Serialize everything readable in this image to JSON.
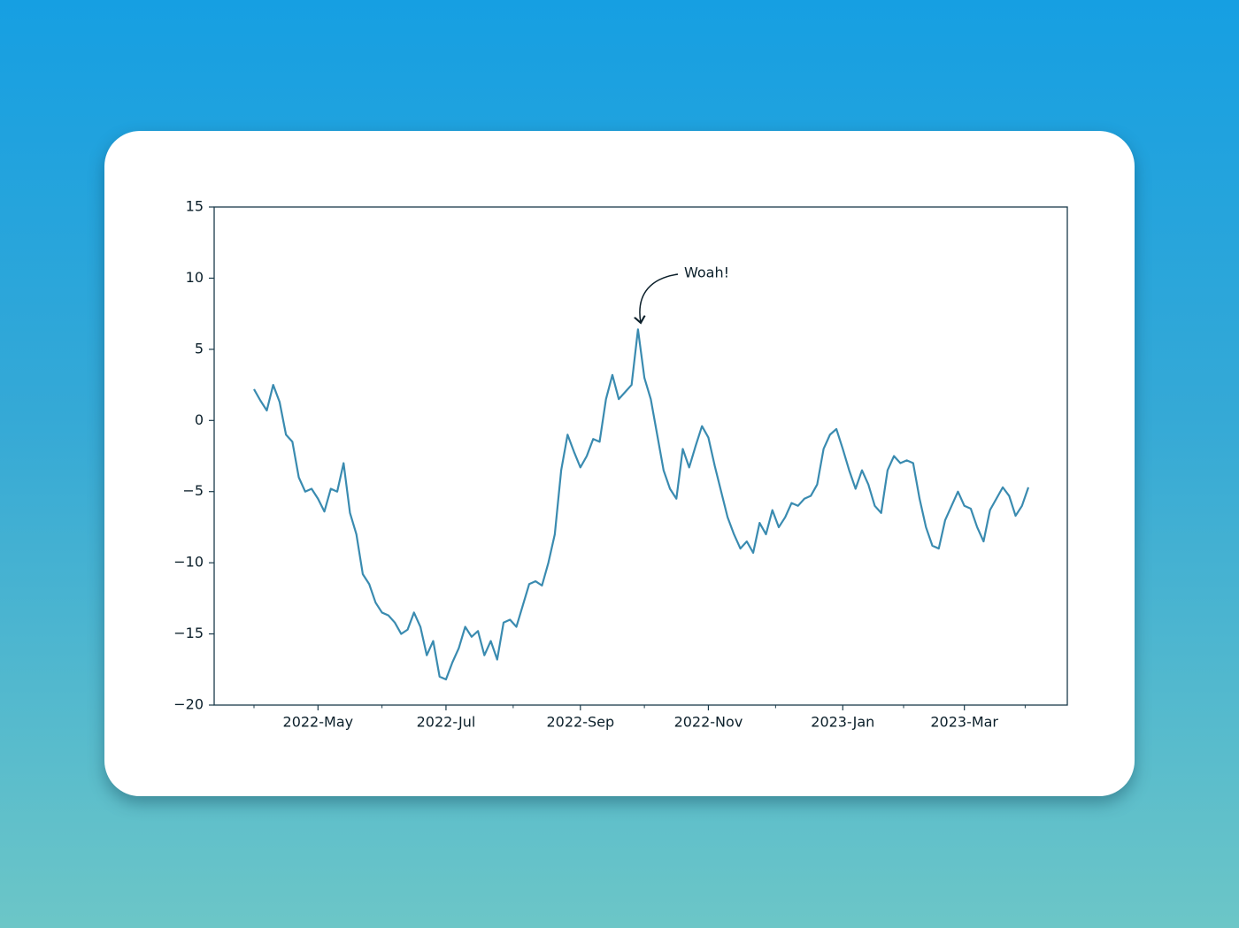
{
  "chart_data": {
    "type": "line",
    "categories": [
      null,
      null,
      null,
      null,
      null,
      null,
      null,
      null,
      null,
      null,
      "2022-May",
      null,
      null,
      null,
      null,
      null,
      null,
      null,
      null,
      null,
      null,
      null,
      null,
      null,
      null,
      null,
      null,
      null,
      null,
      null,
      "2022-Jul",
      null,
      null,
      null,
      null,
      null,
      null,
      null,
      null,
      null,
      null,
      null,
      null,
      null,
      null,
      null,
      null,
      null,
      null,
      null,
      null,
      "2022-Sep",
      null,
      null,
      null,
      null,
      null,
      null,
      null,
      null,
      null,
      null,
      null,
      null,
      null,
      null,
      null,
      null,
      null,
      null,
      null,
      "2022-Nov",
      null,
      null,
      null,
      null,
      null,
      null,
      null,
      null,
      null,
      null,
      null,
      null,
      null,
      null,
      null,
      null,
      null,
      null,
      null,
      null,
      "2023-Jan",
      null,
      null,
      null,
      null,
      null,
      null,
      null,
      null,
      null,
      null,
      null,
      null,
      null,
      null,
      null,
      null,
      null,
      null,
      "2023-Mar",
      null,
      null,
      null,
      null,
      null,
      null,
      null,
      null,
      null,
      null
    ],
    "values": [
      2.2,
      1.4,
      0.7,
      2.5,
      1.3,
      -1.0,
      -1.5,
      -4.0,
      -5.0,
      -4.8,
      -5.5,
      -6.4,
      -4.8,
      -5.0,
      -3.0,
      -6.5,
      -8.0,
      -10.8,
      -11.5,
      -12.8,
      -13.5,
      -13.7,
      -14.2,
      -15.0,
      -14.7,
      -13.5,
      -14.5,
      -16.5,
      -15.5,
      -18.0,
      -18.2,
      -17.0,
      -16.0,
      -14.5,
      -15.2,
      -14.8,
      -16.5,
      -15.5,
      -16.8,
      -14.2,
      -14.0,
      -14.5,
      -13.0,
      -11.5,
      -11.3,
      -11.6,
      -10.0,
      -8.0,
      -3.5,
      -1.0,
      -2.2,
      -3.3,
      -2.5,
      -1.3,
      -1.5,
      1.5,
      3.2,
      1.5,
      2.0,
      2.5,
      6.4,
      3.0,
      1.5,
      -1.0,
      -3.5,
      -4.8,
      -5.5,
      -2.0,
      -3.3,
      -1.8,
      -0.4,
      -1.2,
      -3.2,
      -5.0,
      -6.8,
      -8.0,
      -9.0,
      -8.5,
      -9.3,
      -7.2,
      -8.0,
      -6.3,
      -7.5,
      -6.8,
      -5.8,
      -6.0,
      -5.5,
      -5.3,
      -4.5,
      -2.0,
      -1.0,
      -0.6,
      -2.0,
      -3.5,
      -4.8,
      -3.5,
      -4.5,
      -6.0,
      -6.5,
      -3.5,
      -2.5,
      -3.0,
      -2.8,
      -3.0,
      -5.5,
      -7.5,
      -8.8,
      -9.0,
      -7.0,
      -6.0,
      -5.0,
      -6.0,
      -6.2,
      -7.5,
      -8.5,
      -6.3,
      -5.5,
      -4.7,
      -5.3,
      -6.7,
      -6.0,
      -4.7
    ],
    "color": "#3a8bb0",
    "ylim": [
      -20,
      15
    ],
    "yticks": [
      {
        "value": -20,
        "label": "−20"
      },
      {
        "value": -15,
        "label": "−15"
      },
      {
        "value": -10,
        "label": "−10"
      },
      {
        "value": -5,
        "label": "−5"
      },
      0,
      5,
      10,
      15
    ],
    "annotation": "Woah!"
  }
}
